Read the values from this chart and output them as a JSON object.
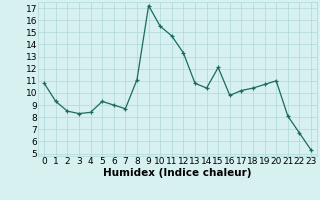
{
  "x": [
    0,
    1,
    2,
    3,
    4,
    5,
    6,
    7,
    8,
    9,
    10,
    11,
    12,
    13,
    14,
    15,
    16,
    17,
    18,
    19,
    20,
    21,
    22,
    23
  ],
  "y": [
    10.8,
    9.3,
    8.5,
    8.3,
    8.4,
    9.3,
    9.0,
    8.7,
    11.1,
    17.2,
    15.5,
    14.7,
    13.3,
    10.8,
    10.4,
    12.1,
    9.8,
    10.2,
    10.4,
    10.7,
    11.0,
    8.1,
    6.7,
    5.3
  ],
  "line_color": "#1a6b5e",
  "marker": "+",
  "bg_color": "#d7f0f0",
  "grid_color": "#b0d8d8",
  "xlabel": "Humidex (Indice chaleur)",
  "xlim": [
    -0.5,
    23.5
  ],
  "ylim": [
    4.8,
    17.5
  ],
  "yticks": [
    5,
    6,
    7,
    8,
    9,
    10,
    11,
    12,
    13,
    14,
    15,
    16,
    17
  ],
  "xticks": [
    0,
    1,
    2,
    3,
    4,
    5,
    6,
    7,
    8,
    9,
    10,
    11,
    12,
    13,
    14,
    15,
    16,
    17,
    18,
    19,
    20,
    21,
    22,
    23
  ],
  "tick_fontsize": 6.5,
  "label_fontsize": 7.5,
  "marker_size": 3,
  "linewidth": 0.9
}
